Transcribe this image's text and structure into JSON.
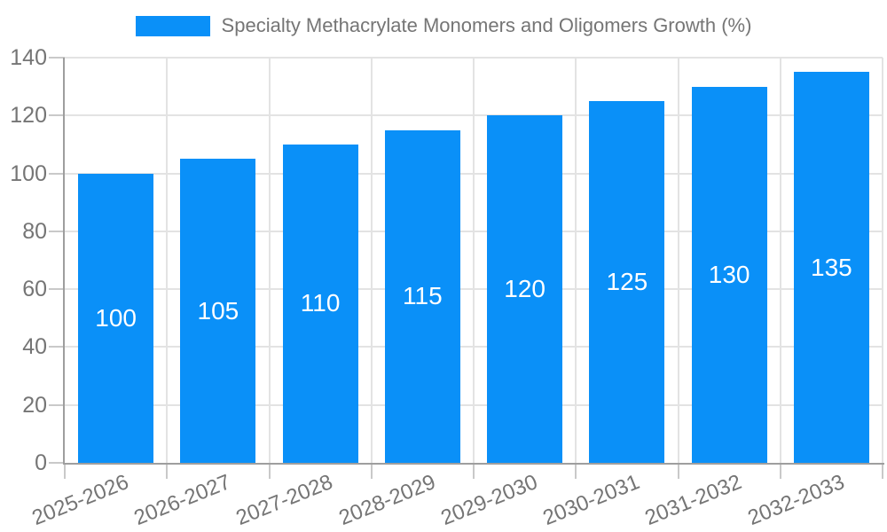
{
  "chart_data": {
    "type": "bar",
    "title": "Specialty Methacrylate Monomers and Oligomers Growth (%)",
    "categories": [
      "2025-2026",
      "2026-2027",
      "2027-2028",
      "2028-2029",
      "2029-2030",
      "2030-2031",
      "2031-2032",
      "2032-2033"
    ],
    "values": [
      100,
      105,
      110,
      115,
      120,
      125,
      130,
      135
    ],
    "value_labels": [
      "100",
      "105",
      "110",
      "115",
      "120",
      "125",
      "130",
      "135"
    ],
    "xlabel": "",
    "ylabel": "",
    "ylim": [
      0,
      140
    ],
    "ytick_step": 20,
    "ytick_labels": [
      "0",
      "20",
      "40",
      "60",
      "80",
      "100",
      "120",
      "140"
    ],
    "grid": true,
    "legend_position": "top-center",
    "colors": {
      "bar": "#0A90F8",
      "grid": "#E3E3E3",
      "tick": "#C9C9C9",
      "axis": "#9E9E9E",
      "label_text": "#757575",
      "value_text": "#FFFFFF",
      "background": "#FFFFFF"
    }
  }
}
